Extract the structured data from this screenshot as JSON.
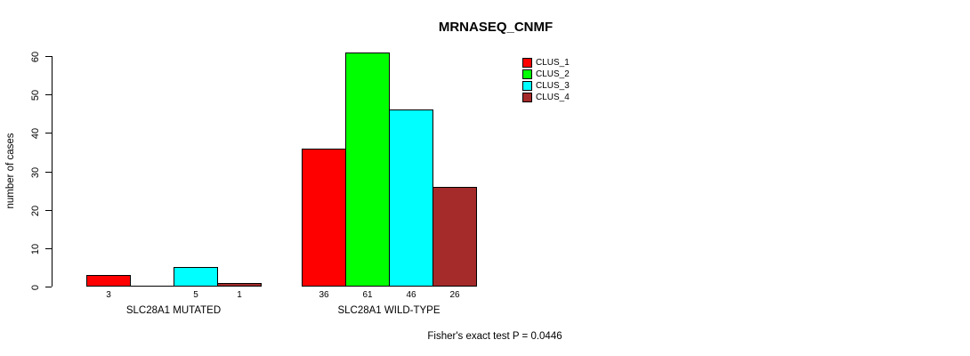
{
  "chart_data": {
    "type": "bar",
    "title": "MRNASEQ_CNMF",
    "ylabel": "number of cases",
    "annotation": "Fisher's exact test P = 0.0446",
    "categories": [
      "SLC28A1 MUTATED",
      "SLC28A1 WILD-TYPE"
    ],
    "series": [
      {
        "name": "CLUS_1",
        "color": "#FF0000",
        "values": [
          3,
          36
        ]
      },
      {
        "name": "CLUS_2",
        "color": "#00FF00",
        "values": [
          0,
          61
        ]
      },
      {
        "name": "CLUS_3",
        "color": "#00FFFF",
        "values": [
          5,
          46
        ]
      },
      {
        "name": "CLUS_4",
        "color": "#A52A2A",
        "values": [
          1,
          26
        ]
      }
    ],
    "yticks": [
      0,
      10,
      20,
      30,
      40,
      50,
      60
    ],
    "ylim": [
      0,
      60
    ],
    "grid": false,
    "legend_position": "top-right",
    "bar_value_labels": [
      [
        "3",
        "",
        "5",
        "1"
      ],
      [
        "36",
        "61",
        "46",
        "26"
      ]
    ]
  }
}
